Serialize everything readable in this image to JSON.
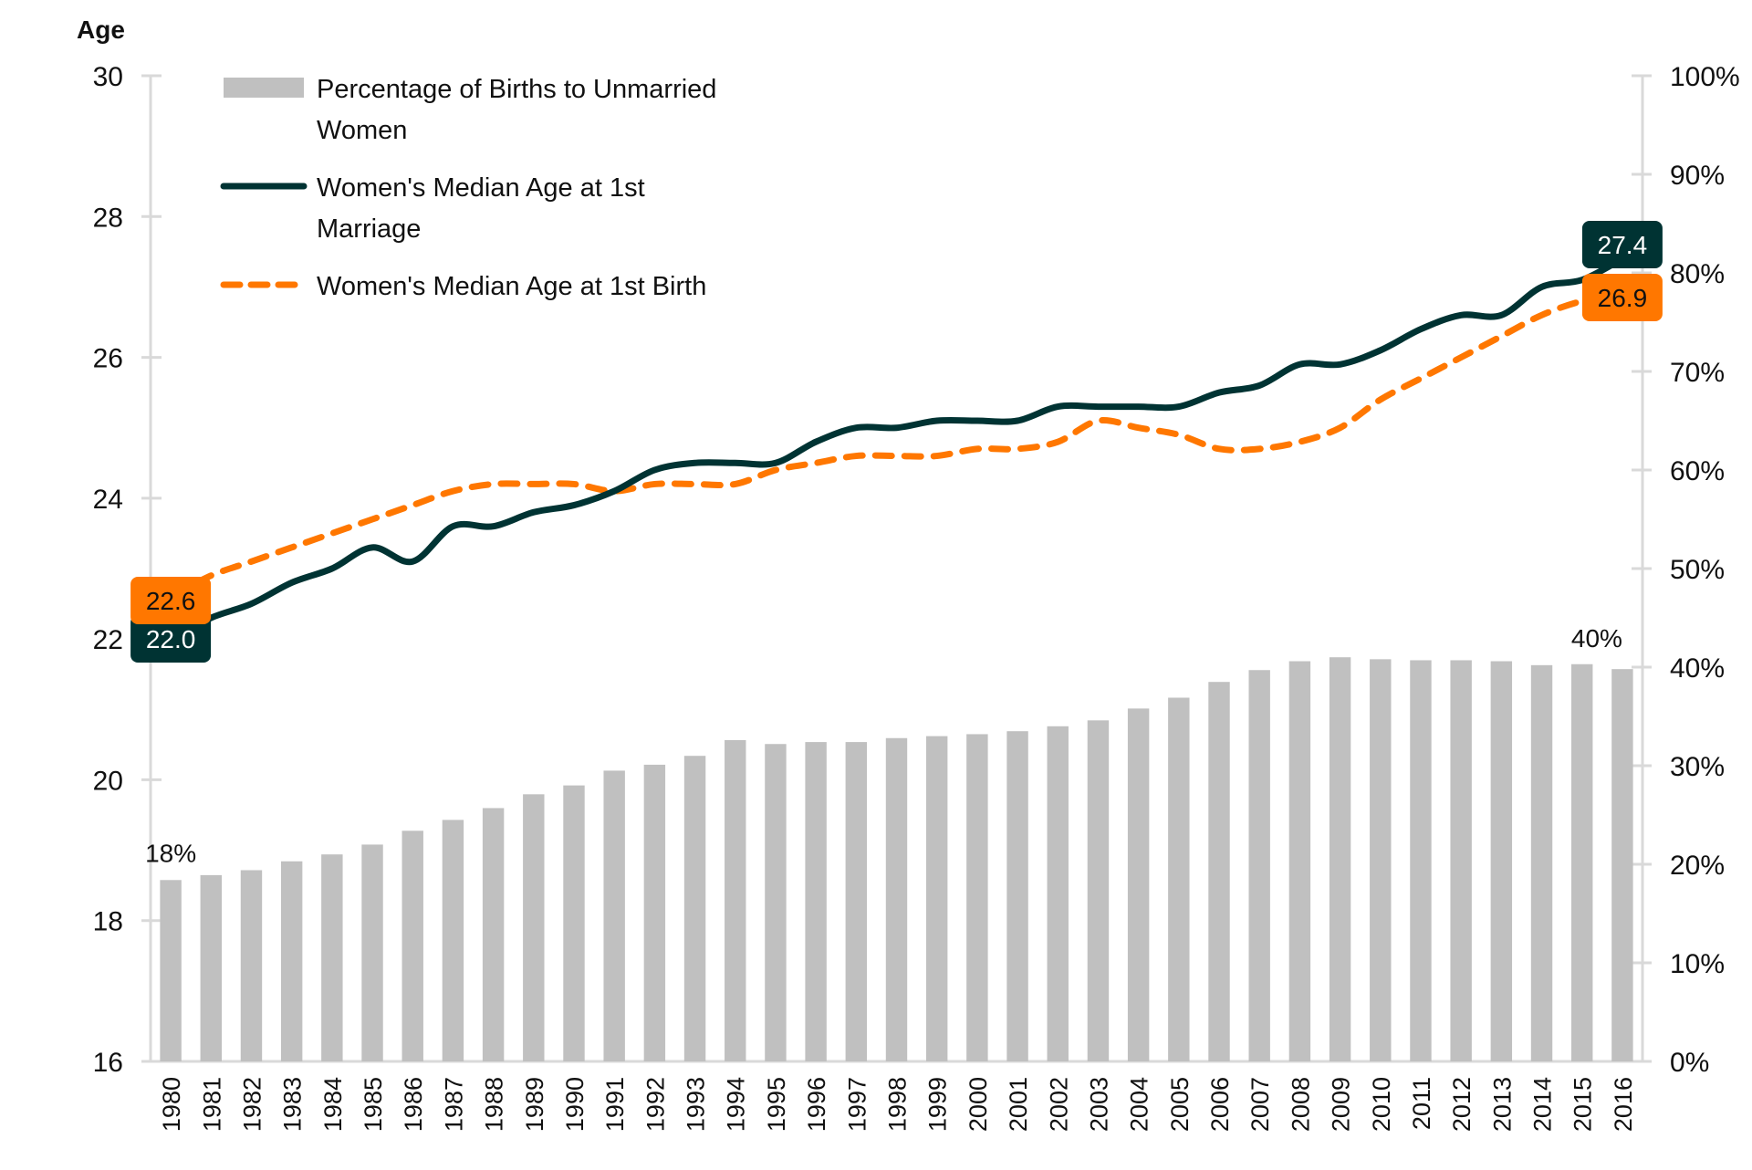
{
  "chart_data": {
    "type": "bar+line",
    "title": "",
    "categories": [
      "1980",
      "1981",
      "1982",
      "1983",
      "1984",
      "1985",
      "1986",
      "1987",
      "1988",
      "1989",
      "1990",
      "1991",
      "1992",
      "1993",
      "1994",
      "1995",
      "1996",
      "1997",
      "1998",
      "1999",
      "2000",
      "2001",
      "2002",
      "2003",
      "2004",
      "2005",
      "2006",
      "2007",
      "2008",
      "2009",
      "2010",
      "2011",
      "2012",
      "2013",
      "2014",
      "2015",
      "2016"
    ],
    "left_axis": {
      "title": "Age",
      "range": [
        16,
        30
      ],
      "ticks": [
        16,
        18,
        20,
        22,
        24,
        26,
        28,
        30
      ],
      "tick_labels": [
        "16",
        "18",
        "20",
        "22",
        "24",
        "26",
        "28",
        "30"
      ]
    },
    "right_axis": {
      "range": [
        0,
        100
      ],
      "ticks": [
        0,
        10,
        20,
        30,
        40,
        50,
        60,
        70,
        80,
        90,
        100
      ],
      "tick_labels": [
        "0%",
        "10%",
        "20%",
        "30%",
        "40%",
        "50%",
        "60%",
        "70%",
        "80%",
        "90%",
        "100%"
      ]
    },
    "series": [
      {
        "name": "Percentage of Births to Unmarried Women",
        "type": "bar",
        "axis": "right",
        "color": "#c0c0c0",
        "values": [
          18.4,
          18.9,
          19.4,
          20.3,
          21.0,
          22.0,
          23.4,
          24.5,
          25.7,
          27.1,
          28.0,
          29.5,
          30.1,
          31.0,
          32.6,
          32.2,
          32.4,
          32.4,
          32.8,
          33.0,
          33.2,
          33.5,
          34.0,
          34.6,
          35.8,
          36.9,
          38.5,
          39.7,
          40.6,
          41.0,
          40.8,
          40.7,
          40.7,
          40.6,
          40.2,
          40.3,
          39.8
        ],
        "labels": {
          "first": "18%",
          "last": "40%"
        }
      },
      {
        "name": "Women's Median Age at 1st Marriage",
        "type": "line",
        "axis": "left",
        "style": "solid",
        "color": "#003333",
        "values": [
          22.0,
          22.3,
          22.5,
          22.8,
          23.0,
          23.3,
          23.1,
          23.6,
          23.6,
          23.8,
          23.9,
          24.1,
          24.4,
          24.5,
          24.5,
          24.5,
          24.8,
          25.0,
          25.0,
          25.1,
          25.1,
          25.1,
          25.3,
          25.3,
          25.3,
          25.3,
          25.5,
          25.6,
          25.9,
          25.9,
          26.1,
          26.4,
          26.6,
          26.6,
          27.0,
          27.1,
          27.4
        ],
        "labels": {
          "first": "22.0",
          "last": "27.4"
        }
      },
      {
        "name": "Women's Median Age at 1st Birth",
        "type": "line",
        "axis": "left",
        "style": "dashed",
        "color": "#ff7700",
        "values": [
          22.6,
          22.9,
          23.1,
          23.3,
          23.5,
          23.7,
          23.9,
          24.1,
          24.2,
          24.2,
          24.2,
          24.1,
          24.2,
          24.2,
          24.2,
          24.4,
          24.5,
          24.6,
          24.6,
          24.6,
          24.7,
          24.7,
          24.8,
          25.1,
          25.0,
          24.9,
          24.7,
          24.7,
          24.8,
          25.0,
          25.4,
          25.7,
          26.0,
          26.3,
          26.6,
          26.8,
          26.9
        ],
        "labels": {
          "first": "22.6",
          "last": "26.9"
        }
      }
    ],
    "legend": {
      "placement": "top-left",
      "entries": [
        {
          "lines": [
            "Percentage of Births to Unmarried",
            "Women"
          ],
          "swatch": "bar"
        },
        {
          "lines": [
            "Women's Median Age at 1st",
            "Marriage"
          ],
          "swatch": "solid-line"
        },
        {
          "lines": [
            "Women's Median Age at 1st Birth"
          ],
          "swatch": "dashed-line"
        }
      ]
    },
    "grid": false
  }
}
